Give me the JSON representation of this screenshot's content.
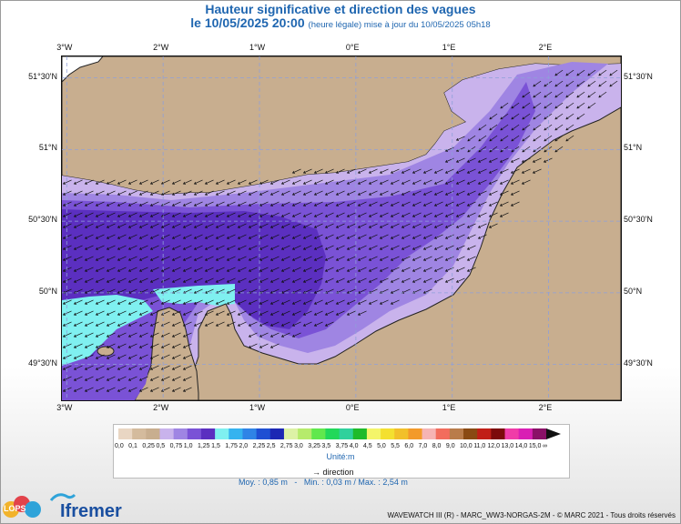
{
  "header": {
    "title": "Hauteur significative et direction des vagues",
    "date_bold": "le 10/05/2025 20:00",
    "date_note": "(heure légale) mise à jour du 10/05/2025 05h18"
  },
  "axes": {
    "lon_labels": [
      "3°W",
      "2°W",
      "1°W",
      "0°E",
      "1°E",
      "2°E"
    ],
    "lat_labels": [
      "51°30'N",
      "51°N",
      "50°30'N",
      "50°N",
      "49°30'N"
    ],
    "lon_values": [
      -3,
      -2,
      -1,
      0,
      1,
      2
    ],
    "lat_values": [
      51.5,
      51,
      50.5,
      50,
      49.5
    ],
    "lon_range": [
      -3.05,
      2.75
    ],
    "lat_range": [
      49.25,
      51.65
    ],
    "grid": true
  },
  "colorbar": {
    "labels": [
      "0,0",
      "0,1",
      "0,25",
      "0,5",
      "0,75",
      "1,0",
      "1,25",
      "1,5",
      "1,75",
      "2,0",
      "2,25",
      "2,5",
      "2,75",
      "3,0",
      "3,25",
      "3,5",
      "3,75",
      "4,0",
      "4,5",
      "5,0",
      "5,5",
      "6,0",
      "7,0",
      "8,0",
      "9,0",
      "10,0",
      "11,0",
      "12,0",
      "13,0",
      "14,0",
      "15,0",
      "∞"
    ],
    "colors": [
      "#e9d6c3",
      "#d4bb9d",
      "#c8ae8f",
      "#c9b3ec",
      "#9f85e3",
      "#7a52d6",
      "#5b2fc0",
      "#7ff0f0",
      "#35b3ef",
      "#2f84e6",
      "#1f4fd3",
      "#1c28b4",
      "#ddf2a6",
      "#b6eb6c",
      "#61e84d",
      "#22d85a",
      "#2fd19c",
      "#1fbb2b",
      "#f4f56a",
      "#f4e030",
      "#f2c02a",
      "#f39a2a",
      "#f6b4b4",
      "#f26d5d",
      "#b97c4a",
      "#8a4a13",
      "#c11f17",
      "#7c0a0a",
      "#f03ca8",
      "#d91fb4",
      "#8a1167"
    ],
    "unit": "Unité:m"
  },
  "legend": {
    "direction_label": "direction",
    "stats": "Moy. : 0,85 m   -   Min. : 0,03 m / Max. : 2,54 m"
  },
  "footer": {
    "credits": "WAVEWATCH III (R) - MARC_WW3-NORGAS-2M - © MARC 2021 - Tous droits réservés"
  },
  "logos": {
    "lops": "LOPS",
    "ifremer": "Ifremer"
  },
  "map_colors": {
    "land": "#c8ae8f",
    "coast": "#222222",
    "h_0_5": "#c9b3ec",
    "h_0_75": "#9f85e3",
    "h_1_0": "#7a52d6",
    "h_1_25": "#5b2fc0",
    "h_1_5": "#7ff0f0"
  }
}
